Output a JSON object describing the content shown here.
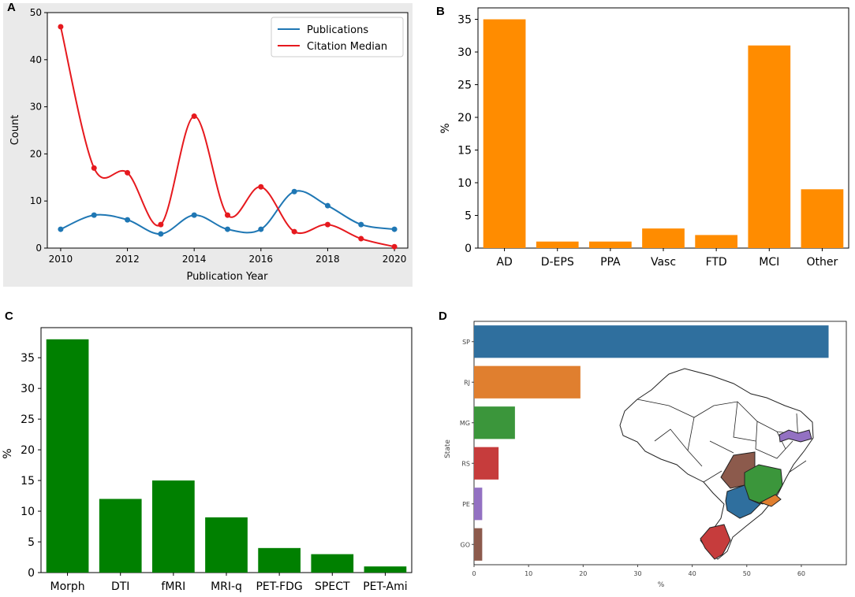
{
  "panels": {
    "a": "A",
    "b": "B",
    "c": "C",
    "d": "D"
  },
  "chart_data": [
    {
      "type": "line",
      "xlabel": "Publication Year",
      "ylabel": "Count",
      "x": [
        2010,
        2011,
        2012,
        2013,
        2014,
        2015,
        2016,
        2017,
        2018,
        2019,
        2020
      ],
      "xlim": [
        2009.6,
        2020.4
      ],
      "ylim": [
        0,
        50
      ],
      "xticks": [
        "2010",
        "2012",
        "2014",
        "2016",
        "2018",
        "2020"
      ],
      "yticks": [
        "0",
        "10",
        "20",
        "30",
        "40",
        "50"
      ],
      "legend": "top-right",
      "series": [
        {
          "name": "Publications",
          "color": "#1f77b4",
          "values": [
            4,
            7,
            6,
            3,
            7,
            4,
            4,
            12,
            9,
            5,
            4
          ]
        },
        {
          "name": "Citation Median",
          "color": "#e6191e",
          "values": [
            47,
            17,
            16,
            5,
            28,
            7,
            13,
            3.5,
            5,
            2,
            0.3
          ]
        }
      ]
    },
    {
      "type": "bar",
      "xlabel": "",
      "ylabel": "%",
      "color": "#ff8c00",
      "categories": [
        "AD",
        "D-EPS",
        "PPA",
        "Vasc",
        "FTD",
        "MCI",
        "Other"
      ],
      "values": [
        35,
        1,
        1,
        3,
        2,
        31,
        9
      ],
      "ylim": [
        0,
        36.75
      ],
      "yticks": [
        "0",
        "5",
        "10",
        "15",
        "20",
        "25",
        "30",
        "35"
      ]
    },
    {
      "type": "bar",
      "xlabel": "",
      "ylabel": "%",
      "color": "#008000",
      "categories": [
        "Morph",
        "DTI",
        "fMRI",
        "MRI-q",
        "PET-FDG",
        "SPECT",
        "PET-Ami"
      ],
      "values": [
        38,
        12,
        15,
        9,
        4,
        3,
        1
      ],
      "ylim": [
        0,
        39.9
      ],
      "yticks": [
        "0",
        "5",
        "10",
        "15",
        "20",
        "25",
        "30",
        "35"
      ]
    },
    {
      "type": "bar",
      "orientation": "horizontal",
      "xlabel": "%",
      "ylabel": "State",
      "categories": [
        "SP",
        "RJ",
        "MG",
        "RS",
        "PE",
        "GO"
      ],
      "values": [
        65,
        19.5,
        7.5,
        4.5,
        1.5,
        1.5
      ],
      "colors": [
        "#2f6f9e",
        "#e07f2f",
        "#3b963b",
        "#c63c3c",
        "#9371c2",
        "#8c5a4c"
      ],
      "xlim": [
        0,
        68.25
      ],
      "xticks": [
        "0",
        "10",
        "20",
        "30",
        "40",
        "50",
        "60"
      ]
    }
  ]
}
